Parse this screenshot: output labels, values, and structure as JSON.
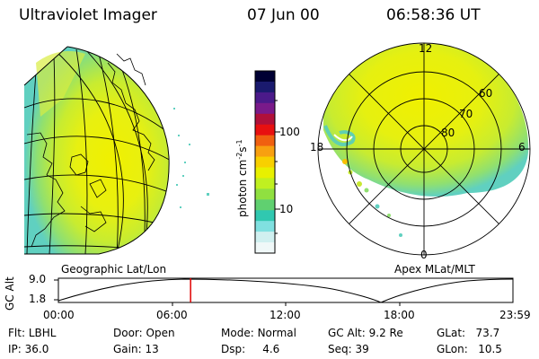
{
  "header": {
    "instrument": "Ultraviolet Imager",
    "date": "07 Jun 00",
    "time": "06:58:36 UT"
  },
  "colorbar": {
    "label": "photon cm",
    "exp1": "-2",
    "mid": "s",
    "exp2": "-1",
    "ticks": [
      "100",
      "10"
    ],
    "colors": [
      "#000033",
      "#1a1a6e",
      "#4b1a8a",
      "#7a1a8a",
      "#b0103a",
      "#e81010",
      "#f06010",
      "#f8a010",
      "#f8d000",
      "#e8f000",
      "#c0f020",
      "#90e040",
      "#60d070",
      "#30c8b0",
      "#80e0e0",
      "#d0f0f0",
      "#f0f8f8"
    ]
  },
  "left_map": {
    "caption": "Geographic Lat/Lon"
  },
  "right_map": {
    "caption": "Apex MLat/MLT",
    "mlt_labels": [
      "12",
      "18",
      "6",
      "0"
    ],
    "lat_labels": [
      "60",
      "70",
      "80"
    ]
  },
  "timeline": {
    "ylabel": "GC Alt",
    "ytop": "9.0",
    "ybottom": "1.8",
    "ticks": [
      "00:00",
      "06:00",
      "12:00",
      "18:00",
      "23:59"
    ],
    "marker_time_hours": 6.98
  },
  "info": {
    "flt_label": "Flt:",
    "flt_value": "LBHL",
    "ip_label": "IP:",
    "ip_value": "36.0",
    "door_label": "Door:",
    "door_value": "Open",
    "gain_label": "Gain:",
    "gain_value": "13",
    "mode_label": "Mode:",
    "mode_value": "Normal",
    "dsp_label": "Dsp:",
    "dsp_value": "4.6",
    "gcalt_label": "GC Alt:",
    "gcalt_value": "9.2 Re",
    "seq_label": "Seq:",
    "seq_value": "39",
    "glat_label": "GLat:",
    "glat_value": "73.7",
    "glon_label": "GLon:",
    "glon_value": "10.5"
  }
}
